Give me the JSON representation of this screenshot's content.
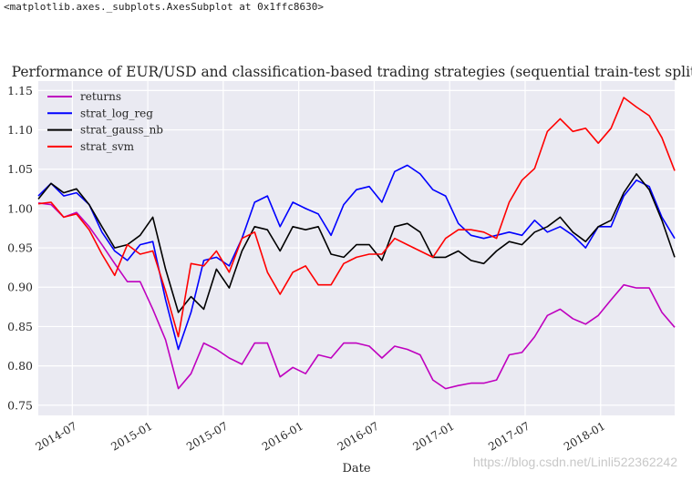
{
  "output_repr": "<matplotlib.axes._subplots.AxesSubplot at 0x1ffc8630>",
  "watermark": "https://blog.csdn.net/Linli522362242",
  "chart_data": {
    "type": "line",
    "title": "Performance of EUR/USD and classification-based trading strategies (sequential train-test split)",
    "xlabel": "Date",
    "ylabel": "",
    "xlim": [
      "2014-04-10",
      "2018-06-28"
    ],
    "ylim": [
      0.737,
      1.162
    ],
    "yticks": [
      0.75,
      0.8,
      0.85,
      0.9,
      0.95,
      1.0,
      1.05,
      1.1,
      1.15
    ],
    "ytick_labels": [
      "0.75",
      "0.80",
      "0.85",
      "0.90",
      "0.95",
      "1.00",
      "1.05",
      "1.10",
      "1.15"
    ],
    "xticks": [
      "2014-07-01",
      "2015-01-01",
      "2015-07-01",
      "2016-01-01",
      "2016-07-01",
      "2017-01-01",
      "2017-07-01",
      "2018-01-01"
    ],
    "xtick_labels": [
      "2014-07",
      "2015-01",
      "2015-07",
      "2016-01",
      "2016-07",
      "2017-01",
      "2017-07",
      "2018-01"
    ],
    "grid": true,
    "legend_placement": "top-left",
    "x_start": "2014-04-10",
    "x_step": "1 month",
    "series": [
      {
        "name": "returns",
        "color": "#bf00bf",
        "values": [
          1.007,
          1.005,
          0.989,
          0.995,
          0.977,
          0.954,
          0.93,
          0.907,
          0.907,
          0.872,
          0.833,
          0.771,
          0.79,
          0.829,
          0.821,
          0.81,
          0.802,
          0.829,
          0.829,
          0.786,
          0.798,
          0.79,
          0.814,
          0.81,
          0.829,
          0.829,
          0.825,
          0.81,
          0.825,
          0.821,
          0.814,
          0.782,
          0.771,
          0.775,
          0.778,
          0.778,
          0.782,
          0.814,
          0.817,
          0.837,
          0.864,
          0.872,
          0.86,
          0.853,
          0.864,
          0.884,
          0.903,
          0.899,
          0.899,
          0.868,
          0.849
        ]
      },
      {
        "name": "strat_log_reg",
        "color": "#0000ff",
        "values": [
          1.016,
          1.032,
          1.016,
          1.02,
          1.005,
          0.97,
          0.946,
          0.934,
          0.954,
          0.958,
          0.884,
          0.821,
          0.868,
          0.934,
          0.938,
          0.927,
          0.962,
          1.008,
          1.016,
          0.977,
          1.008,
          1.0,
          0.993,
          0.966,
          1.005,
          1.024,
          1.028,
          1.008,
          1.047,
          1.055,
          1.044,
          1.024,
          1.016,
          0.981,
          0.966,
          0.962,
          0.966,
          0.97,
          0.966,
          0.985,
          0.97,
          0.977,
          0.966,
          0.95,
          0.977,
          0.977,
          1.016,
          1.036,
          1.028,
          0.989,
          0.962
        ]
      },
      {
        "name": "strat_gauss_nb",
        "color": "#000000",
        "values": [
          1.012,
          1.032,
          1.02,
          1.025,
          1.005,
          0.977,
          0.95,
          0.954,
          0.966,
          0.989,
          0.923,
          0.868,
          0.888,
          0.872,
          0.923,
          0.899,
          0.946,
          0.977,
          0.973,
          0.946,
          0.977,
          0.973,
          0.977,
          0.942,
          0.938,
          0.954,
          0.954,
          0.934,
          0.977,
          0.981,
          0.97,
          0.938,
          0.938,
          0.946,
          0.934,
          0.93,
          0.946,
          0.958,
          0.954,
          0.97,
          0.977,
          0.989,
          0.97,
          0.958,
          0.977,
          0.985,
          1.02,
          1.044,
          1.024,
          0.985,
          0.938
        ]
      },
      {
        "name": "strat_svm",
        "color": "#ff0000",
        "values": [
          1.006,
          1.008,
          0.989,
          0.993,
          0.973,
          0.942,
          0.915,
          0.954,
          0.942,
          0.946,
          0.895,
          0.837,
          0.93,
          0.927,
          0.946,
          0.919,
          0.962,
          0.97,
          0.919,
          0.891,
          0.919,
          0.927,
          0.903,
          0.903,
          0.93,
          0.938,
          0.942,
          0.942,
          0.962,
          0.954,
          0.946,
          0.938,
          0.962,
          0.973,
          0.973,
          0.97,
          0.962,
          1.008,
          1.036,
          1.051,
          1.098,
          1.114,
          1.098,
          1.102,
          1.083,
          1.102,
          1.141,
          1.129,
          1.118,
          1.09,
          1.048
        ]
      }
    ]
  }
}
